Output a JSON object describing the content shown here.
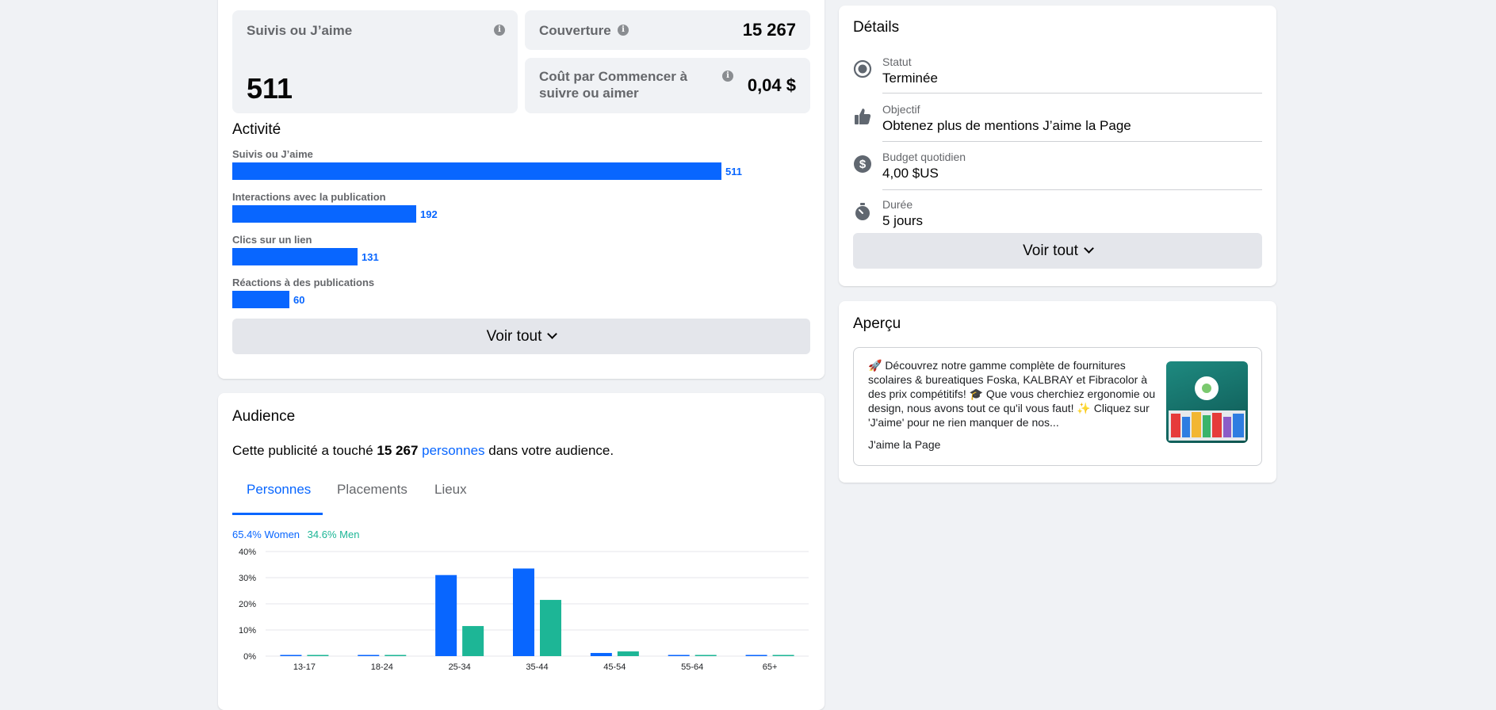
{
  "stats": {
    "follows_label": "Suivis ou J’aime",
    "follows_value": "511",
    "reach_label": "Couverture",
    "reach_value": "15 267",
    "cost_label": "Coût par Commencer à suivre ou aimer",
    "cost_value": "0,04 $"
  },
  "activity": {
    "title": "Activité",
    "items": [
      {
        "label": "Suivis ou J’aime",
        "value": 511,
        "display": "511"
      },
      {
        "label": "Interactions avec la publication",
        "value": 192,
        "display": "192"
      },
      {
        "label": "Clics sur un lien",
        "value": 131,
        "display": "131"
      },
      {
        "label": "Réactions à des publications",
        "value": 60,
        "display": "60"
      }
    ],
    "see_all": "Voir tout"
  },
  "audience": {
    "title": "Audience",
    "sentence_pre": "Cette publicité a touché ",
    "sentence_count": "15 267",
    "sentence_link": "personnes",
    "sentence_post": " dans votre audience.",
    "tabs": [
      "Personnes",
      "Placements",
      "Lieux"
    ],
    "active_tab": 0,
    "legend_women": "65.4% Women",
    "legend_men": "34.6% Men"
  },
  "chart_data": {
    "type": "bar",
    "categories": [
      "13-17",
      "18-24",
      "25-34",
      "35-44",
      "45-54",
      "55-64",
      "65+"
    ],
    "series": [
      {
        "name": "Women",
        "values": [
          0.3,
          0.3,
          31,
          33.5,
          1.2,
          0.3,
          0.3
        ],
        "color": "#0866ff"
      },
      {
        "name": "Men",
        "values": [
          0.3,
          0.3,
          11.5,
          21.5,
          1.8,
          0.3,
          0.3
        ],
        "color": "#1db696"
      }
    ],
    "yticks": [
      "40%",
      "30%",
      "20%",
      "10%",
      "0%"
    ],
    "ylim": [
      0,
      40
    ],
    "grid": true
  },
  "details": {
    "title": "Détails",
    "rows": [
      {
        "label": "Statut",
        "value": "Terminée",
        "icon": "status-radio-icon"
      },
      {
        "label": "Objectif",
        "value": "Obtenez plus de mentions J’aime la Page",
        "icon": "thumbs-up-icon"
      },
      {
        "label": "Budget quotidien",
        "value": "4,00 $US",
        "icon": "dollar-icon"
      },
      {
        "label": "Durée",
        "value": "5 jours",
        "icon": "stopwatch-icon"
      }
    ],
    "see_all": "Voir tout"
  },
  "preview": {
    "title": "Aperçu",
    "text": "🚀 Découvrez notre gamme complète de fournitures scolaires & bureatiques Foska, KALBRAY et Fibracolor à des prix compétitifs! 🎓 Que vous cherchiez ergonomie ou design, nous avons tout ce qu'il vous faut! ✨ Cliquez sur 'J'aime' pour ne rien manquer de nos...",
    "cta": "J'aime la Page"
  },
  "colors": {
    "accent": "#0866ff",
    "men": "#1db696",
    "background": "#f0f2f5"
  }
}
